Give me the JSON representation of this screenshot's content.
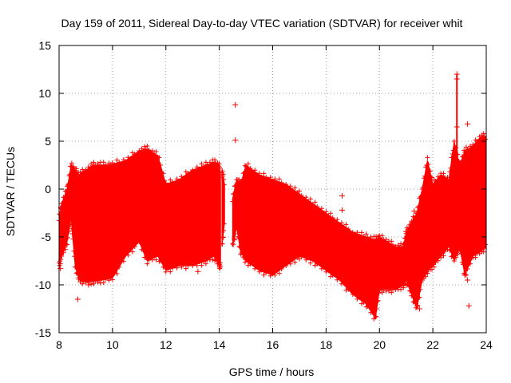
{
  "chart_data": {
    "type": "scatter",
    "title": "Day 159 of 2011, Sidereal Day-to-day VTEC variation (SDTVAR) for receiver whit",
    "xlabel": "GPS time / hours",
    "ylabel": "SDTVAR / TECUs",
    "xlim": [
      8,
      24
    ],
    "ylim": [
      -15,
      15
    ],
    "xticks": [
      8,
      10,
      12,
      14,
      16,
      18,
      20,
      22,
      24
    ],
    "yticks": [
      -15,
      -10,
      -5,
      0,
      5,
      10,
      15
    ],
    "grid": true,
    "marker": "+",
    "color": "#ff0000",
    "series": [
      {
        "name": "SDTVAR",
        "envelope": {
          "x": [
            8.0,
            8.1,
            8.3,
            8.45,
            8.6,
            8.75,
            9.0,
            9.3,
            9.6,
            10.0,
            10.5,
            11.0,
            11.3,
            11.7,
            12.0,
            12.5,
            13.0,
            13.5,
            13.8,
            14.0,
            14.05
          ],
          "upper": [
            -3.0,
            -1.5,
            0.0,
            2.5,
            2.0,
            1.5,
            2.0,
            2.5,
            2.5,
            2.6,
            3.0,
            4.0,
            4.2,
            3.5,
            0.5,
            1.0,
            2.0,
            2.5,
            2.8,
            2.5,
            1.0
          ],
          "lower": [
            -8.0,
            -7.0,
            -5.5,
            -3.0,
            -8.0,
            -9.5,
            -9.7,
            -9.6,
            -9.5,
            -9.3,
            -7.0,
            -5.5,
            -7.5,
            -7.0,
            -8.5,
            -8.0,
            -8.0,
            -7.5,
            -7.0,
            -8.0,
            -8.0
          ]
        },
        "envelope2": {
          "x": [
            14.1,
            14.2
          ],
          "upper": [
            2.0,
            0.5
          ],
          "lower": [
            -6.0,
            -3.5
          ]
        },
        "envelope3": {
          "x": [
            14.5,
            14.65,
            14.8,
            15.0,
            15.5,
            16.0,
            16.5,
            17.0,
            17.5,
            18.0,
            18.5,
            19.0,
            19.5,
            19.85,
            20.0,
            20.3,
            20.6,
            20.9,
            21.0,
            21.2,
            21.4,
            21.6,
            21.8,
            22.0,
            22.3,
            22.6,
            22.8,
            23.0,
            23.2,
            23.5,
            23.8,
            24.0
          ],
          "upper": [
            -1.0,
            1.0,
            0.5,
            2.5,
            1.5,
            1.0,
            0.5,
            -0.5,
            -1.5,
            -2.5,
            -3.5,
            -4.5,
            -5.0,
            -5.3,
            -5.0,
            -5.5,
            -6.0,
            -6.0,
            -4.5,
            -3.5,
            -2.5,
            0.0,
            3.0,
            0.5,
            1.5,
            1.0,
            5.0,
            2.5,
            4.0,
            4.5,
            5.5,
            5.5
          ],
          "lower": [
            -6.0,
            -4.0,
            -6.5,
            -7.5,
            -8.5,
            -9.0,
            -8.0,
            -7.0,
            -7.5,
            -8.5,
            -9.5,
            -11.0,
            -12.0,
            -13.5,
            -10.5,
            -10.5,
            -10.5,
            -10.0,
            -9.5,
            -11.0,
            -12.5,
            -9.5,
            -8.5,
            -8.0,
            -7.0,
            -6.0,
            -7.5,
            -6.0,
            -9.0,
            -7.0,
            -6.5,
            -6.0
          ]
        },
        "outliers": [
          {
            "x": 14.6,
            "y": 8.8
          },
          {
            "x": 14.6,
            "y": 5.1
          },
          {
            "x": 8.05,
            "y": -8.3
          },
          {
            "x": 8.7,
            "y": -11.5
          },
          {
            "x": 9.1,
            "y": -10.0
          },
          {
            "x": 11.8,
            "y": -6.7
          },
          {
            "x": 13.2,
            "y": -8.6
          },
          {
            "x": 18.6,
            "y": -0.7
          },
          {
            "x": 18.6,
            "y": -2.2
          },
          {
            "x": 21.3,
            "y": -2.3
          },
          {
            "x": 21.5,
            "y": -12.5
          },
          {
            "x": 22.9,
            "y": 12.0
          },
          {
            "x": 22.9,
            "y": 11.5
          },
          {
            "x": 22.9,
            "y": 6.5
          },
          {
            "x": 23.3,
            "y": 6.8
          },
          {
            "x": 23.35,
            "y": -12.2
          },
          {
            "x": 23.3,
            "y": -9.5
          },
          {
            "x": 23.2,
            "y": -9.0
          }
        ]
      }
    ]
  }
}
